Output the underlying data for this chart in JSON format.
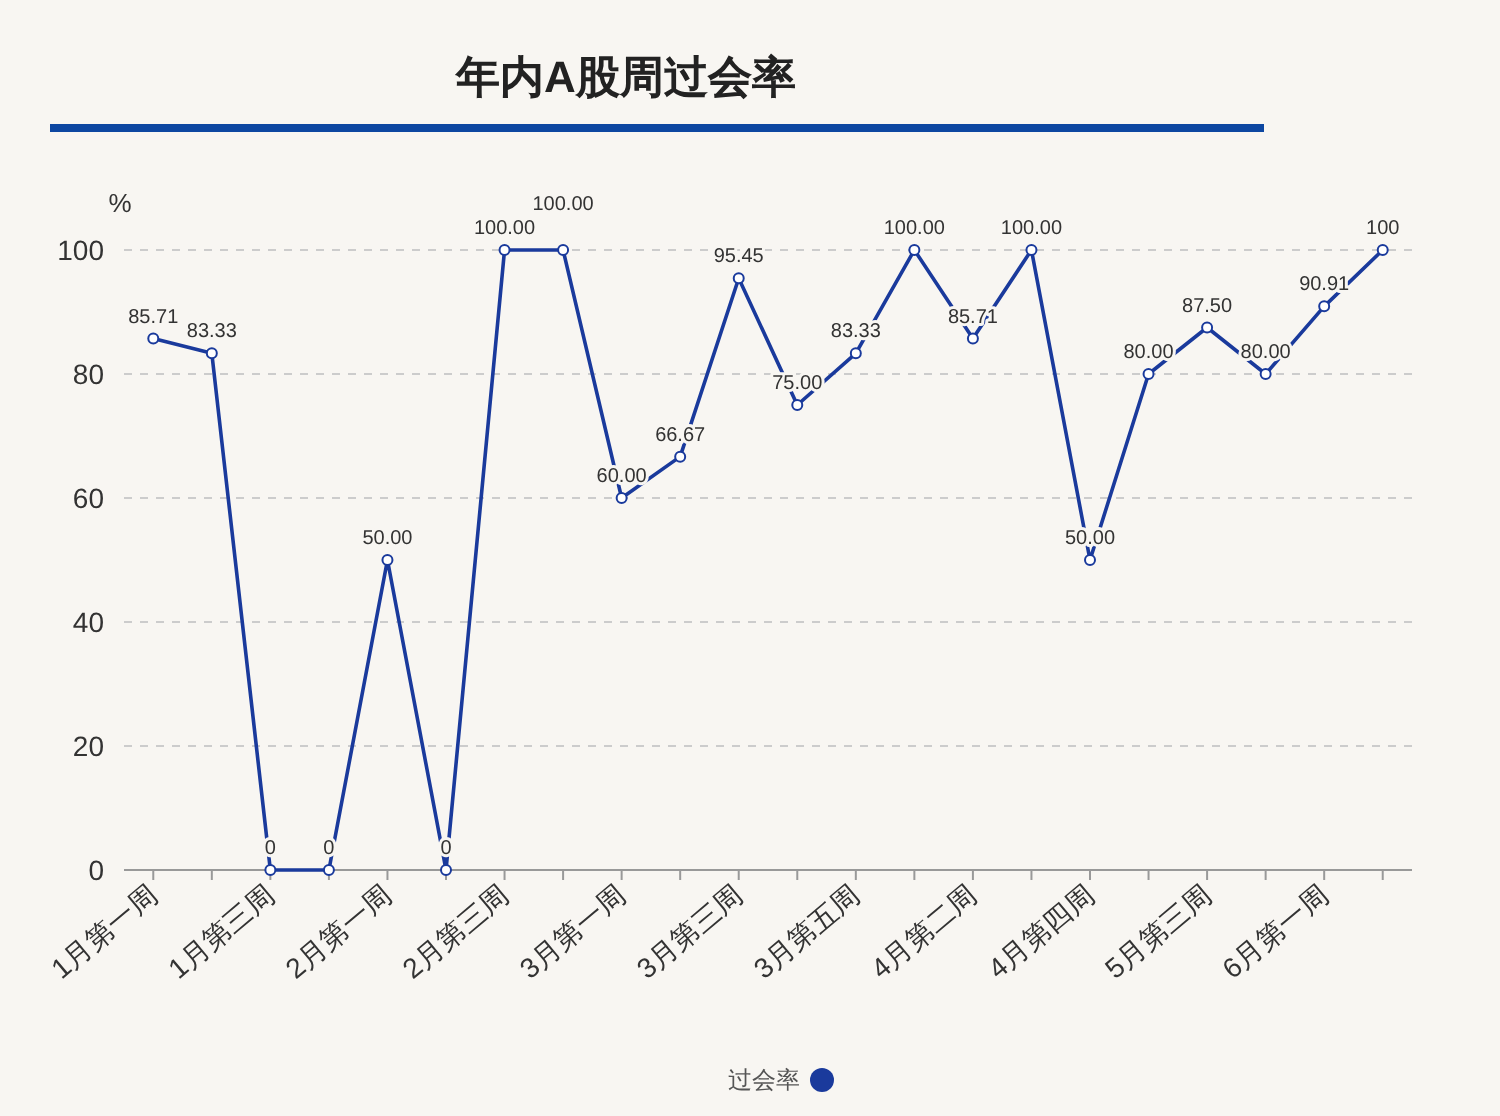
{
  "chart_data": {
    "type": "line",
    "title": "年内A股周过会率",
    "ylabel": "%",
    "categories": [
      "1月第一周",
      null,
      "1月第三周",
      null,
      "2月第一周",
      null,
      "2月第三周",
      null,
      "3月第一周",
      null,
      "3月第三周",
      null,
      "3月第五周",
      null,
      "4月第二周",
      null,
      "4月第四周",
      null,
      "5月第三周",
      null,
      "6月第一周",
      null
    ],
    "series": [
      {
        "name": "过会率",
        "color": "#1a3a9c",
        "values": [
          85.71,
          83.33,
          0,
          0,
          50,
          0,
          100,
          100,
          60,
          66.67,
          95.45,
          75,
          83.33,
          100,
          85.71,
          100,
          50,
          80,
          87.5,
          80,
          90.91,
          100
        ],
        "value_labels": [
          "85.71",
          "83.33",
          "0",
          "0",
          "50.00",
          "0",
          "100.00",
          "100.00",
          "60.00",
          "66.67",
          "95.45",
          "75.00",
          "83.33",
          "100.00",
          "85.71",
          "100.00",
          "50.00",
          "80.00",
          "87.50",
          "80.00",
          "90.91",
          "100"
        ]
      }
    ],
    "ylim": [
      0,
      100
    ],
    "yticks": [
      0,
      20,
      40,
      60,
      80,
      100
    ],
    "grid": "y",
    "legend": "bottom",
    "marker": "circle"
  }
}
